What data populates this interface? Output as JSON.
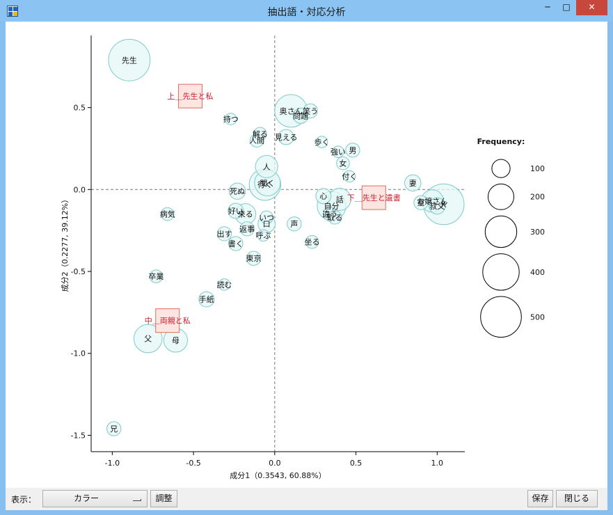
{
  "window": {
    "title": "抽出語・対応分析",
    "controls": {
      "minimize": "─",
      "maximize": "□",
      "close": "✕"
    }
  },
  "toolbar": {
    "display_label": "表示：",
    "display_value": "カラー",
    "adjust_label": "調整",
    "save_label": "保存",
    "close_label": "閉じる"
  },
  "colors": {
    "bubble_fill": "#e6f7f7",
    "bubble_stroke": "#7ccaca",
    "variable_fill": "#fde5e1",
    "variable_stroke": "#e06b5a",
    "variable_text": "#cc1f2e"
  },
  "chart_data": {
    "type": "scatter",
    "title": "",
    "xlabel": "成分1（0.3543, 60.88%）",
    "ylabel": "成分2（0.2277, 39.12%）",
    "xlim": [
      -1.13,
      1.17
    ],
    "ylim": [
      -1.6,
      0.94
    ],
    "xticks": [
      -1.0,
      -0.5,
      0.0,
      0.5,
      1.0
    ],
    "xtick_labels": [
      "-1.0",
      "-0.5",
      "0.0",
      "0.5",
      "1.0"
    ],
    "yticks": [
      0.5,
      0.0,
      -0.5,
      -1.0,
      -1.5
    ],
    "ytick_labels": [
      "0.5",
      "0.0",
      "-0.5",
      "-1.0",
      "-1.5"
    ],
    "points": [
      {
        "label": "先生",
        "x": -0.895,
        "y": 0.79,
        "freq": 520
      },
      {
        "label": "持つ",
        "x": -0.27,
        "y": 0.43,
        "freq": 40
      },
      {
        "label": "奥さん",
        "x": 0.1,
        "y": 0.48,
        "freq": 320
      },
      {
        "label": "問題",
        "x": 0.16,
        "y": 0.45,
        "freq": 70
      },
      {
        "label": "笑う",
        "x": 0.22,
        "y": 0.48,
        "freq": 60
      },
      {
        "label": "解る",
        "x": -0.09,
        "y": 0.34,
        "freq": 50
      },
      {
        "label": "見える",
        "x": 0.07,
        "y": 0.32,
        "freq": 70
      },
      {
        "label": "人間",
        "x": -0.11,
        "y": 0.3,
        "freq": 55
      },
      {
        "label": "歩く",
        "x": 0.29,
        "y": 0.29,
        "freq": 40
      },
      {
        "label": "強い",
        "x": 0.39,
        "y": 0.23,
        "freq": 40
      },
      {
        "label": "男",
        "x": 0.48,
        "y": 0.24,
        "freq": 60
      },
      {
        "label": "人",
        "x": -0.05,
        "y": 0.14,
        "freq": 150
      },
      {
        "label": "女",
        "x": 0.42,
        "y": 0.16,
        "freq": 50
      },
      {
        "label": "付く",
        "x": 0.46,
        "y": 0.08,
        "freq": 40
      },
      {
        "label": "聞く",
        "x": -0.045,
        "y": 0.04,
        "freq": 200
      },
      {
        "label": "行く",
        "x": -0.06,
        "y": 0.03,
        "freq": 300
      },
      {
        "label": "死ぬ",
        "x": -0.23,
        "y": -0.01,
        "freq": 80
      },
      {
        "label": "心",
        "x": 0.3,
        "y": -0.04,
        "freq": 70
      },
      {
        "label": "話",
        "x": 0.4,
        "y": -0.06,
        "freq": 150
      },
      {
        "label": "自分",
        "x": 0.35,
        "y": -0.1,
        "freq": 250
      },
      {
        "label": "妻",
        "x": 0.85,
        "y": 0.04,
        "freq": 80
      },
      {
        "label": "室",
        "x": 0.9,
        "y": -0.08,
        "freq": 60
      },
      {
        "label": "お嬢さん",
        "x": 0.97,
        "y": -0.07,
        "freq": 150
      },
      {
        "label": "K",
        "x": 1.04,
        "y": -0.09,
        "freq": 500
      },
      {
        "label": "叔父",
        "x": 1.0,
        "y": -0.1,
        "freq": 80
      },
      {
        "label": "好い",
        "x": -0.24,
        "y": -0.13,
        "freq": 70
      },
      {
        "label": "来る",
        "x": -0.18,
        "y": -0.15,
        "freq": 130
      },
      {
        "label": "いつ",
        "x": -0.05,
        "y": -0.17,
        "freq": 50
      },
      {
        "label": "病気",
        "x": -0.66,
        "y": -0.15,
        "freq": 50
      },
      {
        "label": "違う",
        "x": 0.34,
        "y": -0.15,
        "freq": 55
      },
      {
        "label": "取る",
        "x": 0.37,
        "y": -0.17,
        "freq": 55
      },
      {
        "label": "口",
        "x": -0.05,
        "y": -0.21,
        "freq": 90
      },
      {
        "label": "返事",
        "x": -0.17,
        "y": -0.24,
        "freq": 60
      },
      {
        "label": "声",
        "x": 0.12,
        "y": -0.21,
        "freq": 60
      },
      {
        "label": "出す",
        "x": -0.31,
        "y": -0.27,
        "freq": 60
      },
      {
        "label": "呼ぶ",
        "x": -0.07,
        "y": -0.28,
        "freq": 40
      },
      {
        "label": "書く",
        "x": -0.24,
        "y": -0.33,
        "freq": 60
      },
      {
        "label": "坐る",
        "x": 0.23,
        "y": -0.32,
        "freq": 50
      },
      {
        "label": "東京",
        "x": -0.13,
        "y": -0.42,
        "freq": 60
      },
      {
        "label": "卒業",
        "x": -0.73,
        "y": -0.53,
        "freq": 50
      },
      {
        "label": "読む",
        "x": -0.31,
        "y": -0.58,
        "freq": 40
      },
      {
        "label": "手紙",
        "x": -0.42,
        "y": -0.67,
        "freq": 70
      },
      {
        "label": "父",
        "x": -0.78,
        "y": -0.91,
        "freq": 240
      },
      {
        "label": "母",
        "x": -0.61,
        "y": -0.92,
        "freq": 170
      },
      {
        "label": "兄",
        "x": -0.99,
        "y": -1.46,
        "freq": 60
      }
    ],
    "variables": [
      {
        "label": "上＿先生と私",
        "x": -0.52,
        "y": 0.57
      },
      {
        "label": "下＿先生と遺書",
        "x": 0.61,
        "y": -0.05
      },
      {
        "label": "中＿両親と私",
        "x": -0.66,
        "y": -0.8
      }
    ],
    "legend": {
      "title": "Frequency:",
      "values": [
        100,
        200,
        300,
        400,
        500
      ],
      "labels": [
        "100",
        "200",
        "300",
        "400",
        "500"
      ],
      "position": "right"
    },
    "grid": false
  }
}
